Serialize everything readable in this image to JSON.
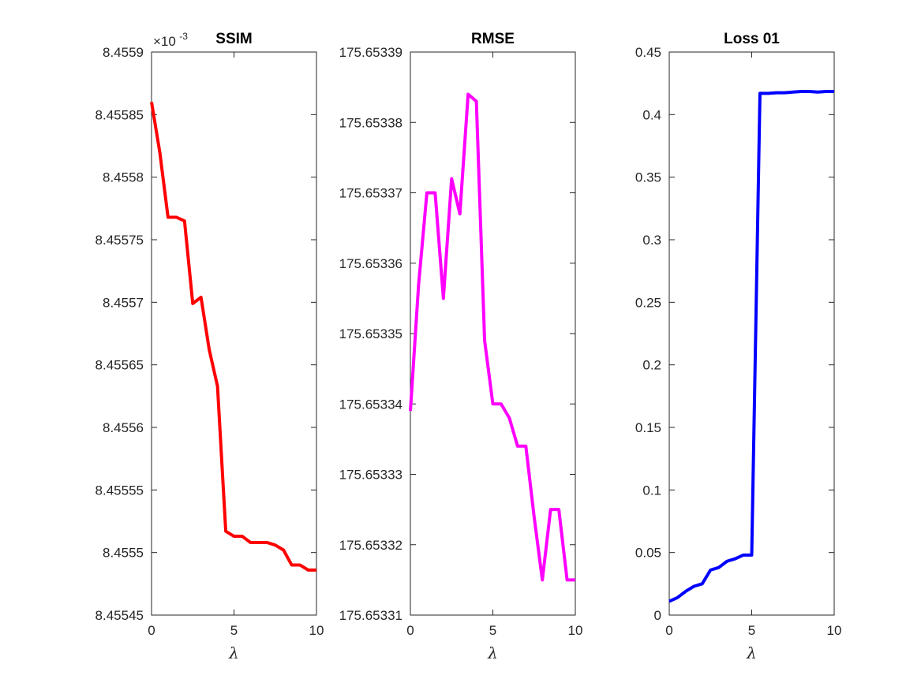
{
  "chart_data": [
    {
      "type": "line",
      "title": "SSIM",
      "xlabel": "λ",
      "ylabel": "",
      "xlim": [
        0,
        10
      ],
      "ylim": [
        8.45545,
        8.4559
      ],
      "xticks": [
        "0",
        "5",
        "10"
      ],
      "xtick_values": [
        0,
        5,
        10
      ],
      "yticks": [
        "8.45545",
        "8.4555",
        "8.45555",
        "8.4556",
        "8.45565",
        "8.4557",
        "8.45575",
        "8.4558",
        "8.45585",
        "8.4559"
      ],
      "ytick_values": [
        8.45545,
        8.4555,
        8.45555,
        8.4556,
        8.45565,
        8.4557,
        8.45575,
        8.4558,
        8.45585,
        8.4559
      ],
      "exponent_label": {
        "base": "×10",
        "power": "-3"
      },
      "grid": false,
      "series": [
        {
          "color": "#ff0000",
          "x": [
            0,
            0.5,
            1,
            1.5,
            2,
            2.5,
            3,
            3.5,
            4,
            4.5,
            5,
            5.5,
            6,
            6.5,
            7,
            7.5,
            8,
            8.5,
            9,
            9.5,
            10
          ],
          "y": [
            8.45586,
            8.45582,
            8.455768,
            8.455768,
            8.455765,
            8.455699,
            8.455704,
            8.455662,
            8.455633,
            8.455517,
            8.455513,
            8.455513,
            8.455508,
            8.455508,
            8.455508,
            8.455506,
            8.455502,
            8.45549,
            8.45549,
            8.455486,
            8.455486
          ]
        }
      ]
    },
    {
      "type": "line",
      "title": "RMSE",
      "xlabel": "λ",
      "ylabel": "",
      "xlim": [
        0,
        10
      ],
      "ylim": [
        175.65331,
        175.65339
      ],
      "xticks": [
        "0",
        "5",
        "10"
      ],
      "xtick_values": [
        0,
        5,
        10
      ],
      "yticks": [
        "175.65331",
        "175.65332",
        "175.65333",
        "175.65334",
        "175.65335",
        "175.65336",
        "175.65337",
        "175.65338",
        "175.65339"
      ],
      "ytick_values": [
        175.65331,
        175.65332,
        175.65333,
        175.65334,
        175.65335,
        175.65336,
        175.65337,
        175.65338,
        175.65339
      ],
      "grid": false,
      "series": [
        {
          "color": "#ff00ff",
          "x": [
            0,
            0.5,
            1,
            1.5,
            2,
            2.5,
            3,
            3.5,
            4,
            4.5,
            5,
            5.5,
            6,
            6.5,
            7,
            7.5,
            8,
            8.5,
            9,
            9.5,
            10
          ],
          "y": [
            175.653339,
            175.653357,
            175.65337,
            175.65337,
            175.653355,
            175.653372,
            175.653367,
            175.653384,
            175.653383,
            175.653349,
            175.65334,
            175.65334,
            175.653338,
            175.653334,
            175.653334,
            175.653324,
            175.653315,
            175.653325,
            175.653325,
            175.653315,
            175.653315
          ]
        }
      ]
    },
    {
      "type": "line",
      "title": "Loss 01",
      "xlabel": "λ",
      "ylabel": "",
      "xlim": [
        0,
        10
      ],
      "ylim": [
        0,
        0.45
      ],
      "xticks": [
        "0",
        "5",
        "10"
      ],
      "xtick_values": [
        0,
        5,
        10
      ],
      "yticks": [
        "0",
        "0.05",
        "0.1",
        "0.15",
        "0.2",
        "0.25",
        "0.3",
        "0.35",
        "0.4",
        "0.45"
      ],
      "ytick_values": [
        0,
        0.05,
        0.1,
        0.15,
        0.2,
        0.25,
        0.3,
        0.35,
        0.4,
        0.45
      ],
      "grid": false,
      "series": [
        {
          "color": "#0000ff",
          "x": [
            0,
            0.5,
            1,
            1.5,
            2,
            2.5,
            3,
            3.5,
            4,
            4.5,
            5,
            5.5,
            6,
            6.5,
            7,
            7.5,
            8,
            8.5,
            9,
            9.5,
            10
          ],
          "y": [
            0.011,
            0.014,
            0.019,
            0.023,
            0.025,
            0.036,
            0.038,
            0.043,
            0.045,
            0.048,
            0.048,
            0.417,
            0.417,
            0.4175,
            0.4175,
            0.418,
            0.4185,
            0.4185,
            0.418,
            0.4185,
            0.4185
          ]
        }
      ]
    }
  ]
}
